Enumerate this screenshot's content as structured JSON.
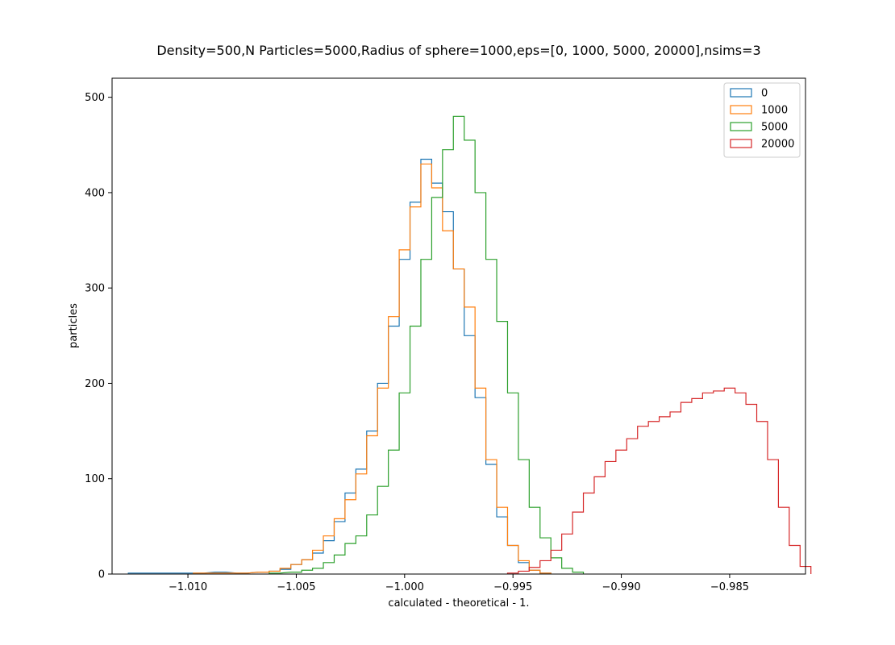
{
  "chart_data": {
    "type": "histogram",
    "title": "Density=500,N Particles=5000,Radius of sphere=1000,eps=[0, 1000, 5000, 20000],nsims=3",
    "xlabel": "calculated - theoretical - 1.",
    "ylabel": "particles",
    "xlim": [
      -1.0135,
      -0.9815
    ],
    "ylim": [
      0,
      520
    ],
    "xticks": [
      -1.01,
      -1.005,
      -1.0,
      -0.995,
      -0.99,
      -0.985
    ],
    "xtick_labels": [
      "−1.010",
      "−1.005",
      "−1.000",
      "−0.995",
      "−0.990",
      "−0.985"
    ],
    "yticks": [
      0,
      100,
      200,
      300,
      400,
      500
    ],
    "ytick_labels": [
      "0",
      "100",
      "200",
      "300",
      "400",
      "500"
    ],
    "grid": false,
    "legend_position": "top-right",
    "series": [
      {
        "name": "0",
        "color": "#1f77b4",
        "points": [
          [
            -1.0125,
            1
          ],
          [
            -1.011,
            1
          ],
          [
            -1.0095,
            1
          ],
          [
            -1.0085,
            2
          ],
          [
            -1.0075,
            1
          ],
          [
            -1.0065,
            2
          ],
          [
            -1.006,
            3
          ],
          [
            -1.0055,
            5
          ],
          [
            -1.005,
            10
          ],
          [
            -1.0045,
            15
          ],
          [
            -1.004,
            22
          ],
          [
            -1.0035,
            35
          ],
          [
            -1.003,
            55
          ],
          [
            -1.0025,
            85
          ],
          [
            -1.002,
            110
          ],
          [
            -1.0015,
            150
          ],
          [
            -1.001,
            200
          ],
          [
            -1.0005,
            260
          ],
          [
            -1.0,
            330
          ],
          [
            -0.9995,
            390
          ],
          [
            -0.999,
            435
          ],
          [
            -0.9985,
            410
          ],
          [
            -0.998,
            380
          ],
          [
            -0.9975,
            320
          ],
          [
            -0.997,
            250
          ],
          [
            -0.9965,
            185
          ],
          [
            -0.996,
            115
          ],
          [
            -0.9955,
            60
          ],
          [
            -0.995,
            30
          ],
          [
            -0.9945,
            12
          ],
          [
            -0.994,
            4
          ],
          [
            -0.9935,
            1
          ]
        ]
      },
      {
        "name": "1000",
        "color": "#ff7f0e",
        "points": [
          [
            -1.0095,
            1
          ],
          [
            -1.0075,
            1
          ],
          [
            -1.0065,
            2
          ],
          [
            -1.006,
            3
          ],
          [
            -1.0055,
            6
          ],
          [
            -1.005,
            10
          ],
          [
            -1.0045,
            15
          ],
          [
            -1.004,
            25
          ],
          [
            -1.0035,
            40
          ],
          [
            -1.003,
            58
          ],
          [
            -1.0025,
            78
          ],
          [
            -1.002,
            105
          ],
          [
            -1.0015,
            145
          ],
          [
            -1.001,
            195
          ],
          [
            -1.0005,
            270
          ],
          [
            -1.0,
            340
          ],
          [
            -0.9995,
            385
          ],
          [
            -0.999,
            430
          ],
          [
            -0.9985,
            405
          ],
          [
            -0.998,
            360
          ],
          [
            -0.9975,
            320
          ],
          [
            -0.997,
            280
          ],
          [
            -0.9965,
            195
          ],
          [
            -0.996,
            120
          ],
          [
            -0.9955,
            70
          ],
          [
            -0.995,
            30
          ],
          [
            -0.9945,
            14
          ],
          [
            -0.994,
            4
          ],
          [
            -0.9935,
            1
          ]
        ]
      },
      {
        "name": "5000",
        "color": "#2ca02c",
        "points": [
          [
            -1.006,
            1
          ],
          [
            -1.005,
            2
          ],
          [
            -1.0045,
            4
          ],
          [
            -1.004,
            6
          ],
          [
            -1.0035,
            12
          ],
          [
            -1.003,
            20
          ],
          [
            -1.0025,
            32
          ],
          [
            -1.002,
            40
          ],
          [
            -1.0015,
            62
          ],
          [
            -1.001,
            92
          ],
          [
            -1.0005,
            130
          ],
          [
            -1.0,
            190
          ],
          [
            -0.9995,
            260
          ],
          [
            -0.999,
            330
          ],
          [
            -0.9985,
            395
          ],
          [
            -0.998,
            445
          ],
          [
            -0.9975,
            480
          ],
          [
            -0.997,
            455
          ],
          [
            -0.9965,
            400
          ],
          [
            -0.996,
            330
          ],
          [
            -0.9955,
            265
          ],
          [
            -0.995,
            190
          ],
          [
            -0.9945,
            120
          ],
          [
            -0.994,
            70
          ],
          [
            -0.9935,
            38
          ],
          [
            -0.993,
            17
          ],
          [
            -0.9925,
            6
          ],
          [
            -0.992,
            2
          ]
        ]
      },
      {
        "name": "20000",
        "color": "#d62728",
        "points": [
          [
            -0.995,
            1
          ],
          [
            -0.9945,
            3
          ],
          [
            -0.994,
            7
          ],
          [
            -0.9935,
            14
          ],
          [
            -0.993,
            25
          ],
          [
            -0.9925,
            42
          ],
          [
            -0.992,
            65
          ],
          [
            -0.9915,
            85
          ],
          [
            -0.991,
            102
          ],
          [
            -0.9905,
            118
          ],
          [
            -0.99,
            130
          ],
          [
            -0.9895,
            142
          ],
          [
            -0.989,
            155
          ],
          [
            -0.9885,
            160
          ],
          [
            -0.988,
            165
          ],
          [
            -0.9875,
            170
          ],
          [
            -0.987,
            180
          ],
          [
            -0.9865,
            184
          ],
          [
            -0.986,
            190
          ],
          [
            -0.9855,
            192
          ],
          [
            -0.985,
            195
          ],
          [
            -0.9845,
            190
          ],
          [
            -0.984,
            178
          ],
          [
            -0.9835,
            160
          ],
          [
            -0.983,
            120
          ],
          [
            -0.9825,
            70
          ],
          [
            -0.982,
            30
          ],
          [
            -0.9815,
            8
          ]
        ]
      }
    ]
  }
}
